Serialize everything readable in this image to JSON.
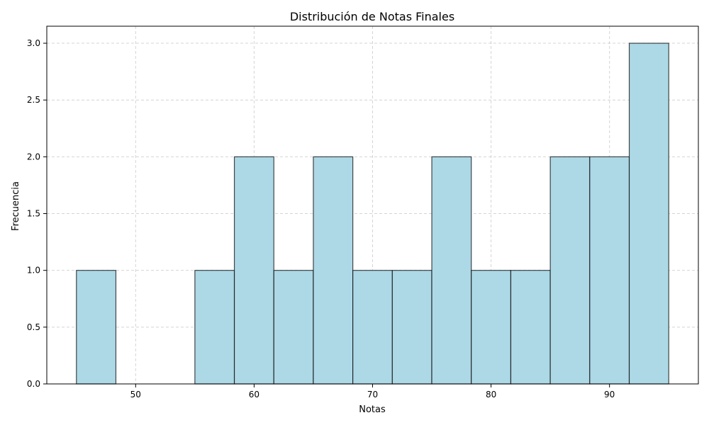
{
  "chart_data": {
    "type": "bar",
    "title": "Distribución de Notas Finales",
    "xlabel": "Notas",
    "ylabel": "Frecuencia",
    "xlim": [
      42.5,
      97.5
    ],
    "ylim": [
      0,
      3.15
    ],
    "bin_edges": [
      45.0,
      48.333,
      51.667,
      55.0,
      58.333,
      61.667,
      65.0,
      68.333,
      71.667,
      75.0,
      78.333,
      81.667,
      85.0,
      88.333,
      91.667,
      95.0
    ],
    "values": [
      1,
      0,
      0,
      1,
      2,
      1,
      2,
      1,
      1,
      2,
      1,
      1,
      2,
      2,
      3
    ],
    "x_ticks": [
      50,
      60,
      70,
      80,
      90
    ],
    "x_tick_labels": [
      "50",
      "60",
      "70",
      "80",
      "90"
    ],
    "y_ticks": [
      0.0,
      0.5,
      1.0,
      1.5,
      2.0,
      2.5,
      3.0
    ],
    "y_tick_labels": [
      "0.0",
      "0.5",
      "1.0",
      "1.5",
      "2.0",
      "2.5",
      "3.0"
    ],
    "grid": true,
    "bar_color": "#add8e6",
    "edge_color": "#000000"
  }
}
